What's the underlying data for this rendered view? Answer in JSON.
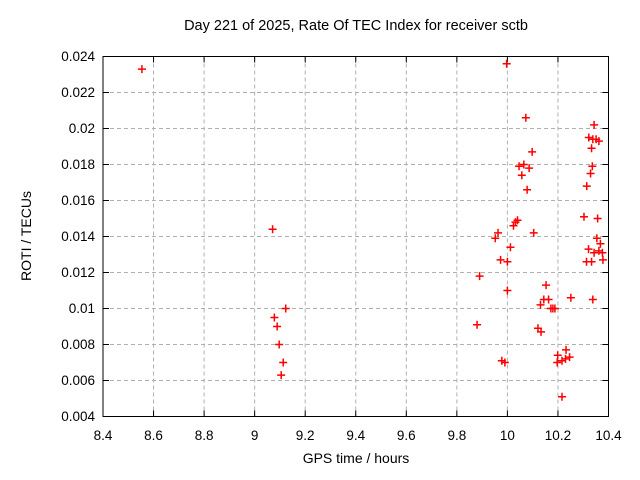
{
  "window": {
    "kind": "gnuplot-style scatter plot"
  },
  "chart_data": {
    "type": "scatter",
    "title": "Day 221 of 2025, Rate Of TEC Index for receiver sctb",
    "xlabel": "GPS time / hours",
    "ylabel": "ROTI / TECUs",
    "xlim": [
      8.4,
      10.4
    ],
    "ylim": [
      0.004,
      0.024
    ],
    "xticks": [
      "8.4",
      "8.6",
      "8.8",
      "9",
      "9.2",
      "9.4",
      "9.6",
      "9.8",
      "10",
      "10.2",
      "10.4"
    ],
    "yticks": [
      "0.004",
      "0.006",
      "0.008",
      "0.01",
      "0.012",
      "0.014",
      "0.016",
      "0.018",
      "0.02",
      "0.022",
      "0.024"
    ],
    "grid": true,
    "legend": "none",
    "marker_shape": "plus",
    "colors": {
      "marker": "#ff0000",
      "grid": "#b0b0b0",
      "axis": "#000000",
      "background": "#ffffff"
    },
    "series": [
      {
        "name": "ROTI",
        "points": [
          [
            8.554,
            0.0233
          ],
          [
            9.071,
            0.0144
          ],
          [
            9.078,
            0.0095
          ],
          [
            9.089,
            0.009
          ],
          [
            9.097,
            0.008
          ],
          [
            9.105,
            0.0063
          ],
          [
            9.113,
            0.007
          ],
          [
            9.123,
            0.01
          ],
          [
            9.88,
            0.0091
          ],
          [
            9.89,
            0.0118
          ],
          [
            9.952,
            0.0139
          ],
          [
            9.963,
            0.0142
          ],
          [
            9.973,
            0.0127
          ],
          [
            9.978,
            0.0071
          ],
          [
            9.99,
            0.007
          ],
          [
            9.997,
            0.0236
          ],
          [
            10.0,
            0.0126
          ],
          [
            10.0,
            0.011
          ],
          [
            10.012,
            0.0134
          ],
          [
            10.024,
            0.0146
          ],
          [
            10.032,
            0.0148
          ],
          [
            10.04,
            0.0149
          ],
          [
            10.046,
            0.0179
          ],
          [
            10.057,
            0.0174
          ],
          [
            10.065,
            0.018
          ],
          [
            10.073,
            0.0206
          ],
          [
            10.078,
            0.0166
          ],
          [
            10.086,
            0.0178
          ],
          [
            10.098,
            0.0187
          ],
          [
            10.104,
            0.0142
          ],
          [
            10.121,
            0.0089
          ],
          [
            10.131,
            0.0102
          ],
          [
            10.133,
            0.0087
          ],
          [
            10.144,
            0.0105
          ],
          [
            10.153,
            0.0113
          ],
          [
            10.163,
            0.0105
          ],
          [
            10.172,
            0.01
          ],
          [
            10.18,
            0.01
          ],
          [
            10.188,
            0.01
          ],
          [
            10.197,
            0.007
          ],
          [
            10.199,
            0.0074
          ],
          [
            10.216,
            0.0071
          ],
          [
            10.216,
            0.0051
          ],
          [
            10.23,
            0.0072
          ],
          [
            10.232,
            0.0077
          ],
          [
            10.246,
            0.0073
          ],
          [
            10.251,
            0.0106
          ],
          [
            10.303,
            0.0151
          ],
          [
            10.313,
            0.0126
          ],
          [
            10.314,
            0.0168
          ],
          [
            10.321,
            0.0133
          ],
          [
            10.322,
            0.0195
          ],
          [
            10.329,
            0.0175
          ],
          [
            10.333,
            0.0126
          ],
          [
            10.333,
            0.0189
          ],
          [
            10.336,
            0.0179
          ],
          [
            10.338,
            0.0194
          ],
          [
            10.338,
            0.0105
          ],
          [
            10.343,
            0.0202
          ],
          [
            10.343,
            0.0131
          ],
          [
            10.351,
            0.0194
          ],
          [
            10.354,
            0.0139
          ],
          [
            10.357,
            0.015
          ],
          [
            10.362,
            0.0193
          ],
          [
            10.362,
            0.0132
          ],
          [
            10.368,
            0.0136
          ],
          [
            10.376,
            0.0131
          ],
          [
            10.378,
            0.0127
          ]
        ]
      }
    ]
  }
}
